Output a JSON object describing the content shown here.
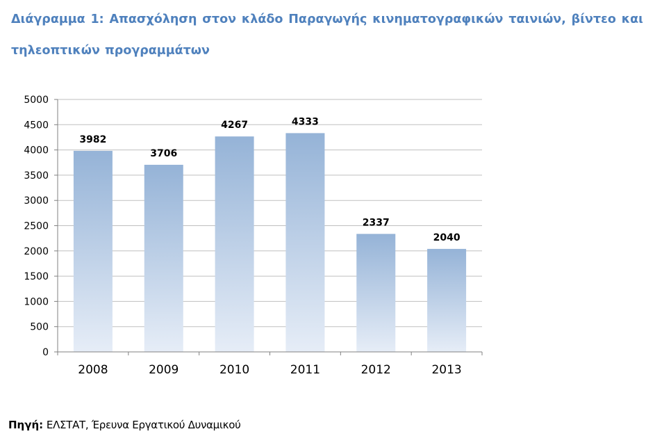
{
  "title": "Διάγραμμα 1: Απασχόληση στον κλάδο Παραγωγής κινηματογραφικών ταινιών, βίντεο και τηλεοπτικών προγραμμάτων",
  "source": {
    "label": "Πηγή:",
    "text": "ΕΛΣΤΑΤ, Έρευνα Εργατικού Δυναμικού"
  },
  "colors": {
    "title": "#4f81bd",
    "bar_top": "#95b3d7",
    "bar_bottom": "#e6edf7",
    "gridline": "#bfbfbf",
    "axis": "#808080"
  },
  "chart_data": {
    "type": "bar",
    "title": "",
    "xlabel": "",
    "ylabel": "",
    "categories": [
      "2008",
      "2009",
      "2010",
      "2011",
      "2012",
      "2013"
    ],
    "values": [
      3982,
      3706,
      4267,
      4333,
      2337,
      2040
    ],
    "data_labels": [
      "3982",
      "3706",
      "4267",
      "4333",
      "2337",
      "2040"
    ],
    "ylim": [
      0,
      5000
    ],
    "yticks": [
      0,
      500,
      1000,
      1500,
      2000,
      2500,
      3000,
      3500,
      4000,
      4500,
      5000
    ],
    "ytick_labels": [
      "0",
      "500",
      "1000",
      "1500",
      "2000",
      "2500",
      "3000",
      "3500",
      "4000",
      "4500",
      "5000"
    ],
    "grid": true,
    "legend": "none"
  }
}
